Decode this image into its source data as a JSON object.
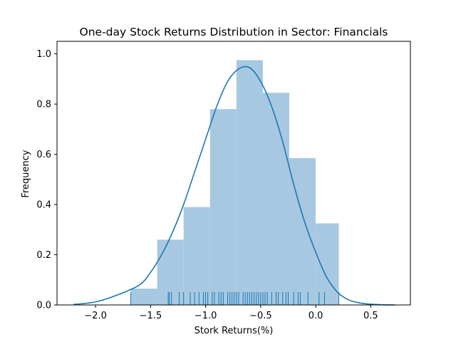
{
  "chart_data": {
    "type": "bar",
    "title": "One-day Stock Returns Distribution in Sector: Financials",
    "xlabel": "Stork Returns(%)",
    "ylabel": "Frequency",
    "xlim": [
      -2.35,
      0.86
    ],
    "ylim": [
      0,
      1.05
    ],
    "xticks": [
      -2.0,
      -1.5,
      -1.0,
      -0.5,
      0.0,
      0.5
    ],
    "xtick_labels": [
      "−2.0",
      "−1.5",
      "−1.0",
      "−0.5",
      "0.0",
      "0.5"
    ],
    "yticks": [
      0.0,
      0.2,
      0.4,
      0.6,
      0.8,
      1.0
    ],
    "ytick_labels": [
      "0.0",
      "0.2",
      "0.4",
      "0.6",
      "0.8",
      "1.0"
    ],
    "grid": false,
    "legend": "none",
    "bar_color": "#a6c9e1",
    "line_color": "#1f77b4",
    "rug_color": "#1f77b4",
    "series": [
      {
        "kind": "histogram",
        "bin_edges": [
          -1.68,
          -1.44,
          -1.2,
          -0.96,
          -0.72,
          -0.48,
          -0.24,
          0.0,
          0.21
        ],
        "values": [
          0.065,
          0.26,
          0.39,
          0.78,
          0.975,
          0.845,
          0.585,
          0.325
        ]
      },
      {
        "kind": "kde",
        "x": [
          -2.2,
          -2.0,
          -1.8,
          -1.6,
          -1.5,
          -1.4,
          -1.3,
          -1.2,
          -1.1,
          -1.0,
          -0.9,
          -0.8,
          -0.7,
          -0.6,
          -0.5,
          -0.4,
          -0.3,
          -0.2,
          -0.1,
          0.0,
          0.1,
          0.2,
          0.3,
          0.4,
          0.5,
          0.6,
          0.72
        ],
        "y": [
          0.002,
          0.012,
          0.04,
          0.08,
          0.13,
          0.2,
          0.29,
          0.4,
          0.53,
          0.66,
          0.79,
          0.89,
          0.94,
          0.945,
          0.89,
          0.79,
          0.65,
          0.48,
          0.33,
          0.21,
          0.11,
          0.05,
          0.02,
          0.008,
          0.003,
          0.001,
          0.0
        ]
      },
      {
        "kind": "rug",
        "x": [
          -1.68,
          -1.34,
          -1.33,
          -1.31,
          -1.24,
          -1.2,
          -1.14,
          -1.1,
          -1.06,
          -1.02,
          -1.0,
          -0.98,
          -0.94,
          -0.92,
          -0.88,
          -0.86,
          -0.84,
          -0.8,
          -0.78,
          -0.76,
          -0.74,
          -0.72,
          -0.7,
          -0.66,
          -0.64,
          -0.62,
          -0.6,
          -0.58,
          -0.56,
          -0.54,
          -0.52,
          -0.5,
          -0.48,
          -0.46,
          -0.44,
          -0.4,
          -0.36,
          -0.34,
          -0.3,
          -0.27,
          -0.25,
          -0.2,
          -0.16,
          -0.14,
          -0.07,
          0.03,
          0.08,
          0.21
        ]
      }
    ]
  }
}
